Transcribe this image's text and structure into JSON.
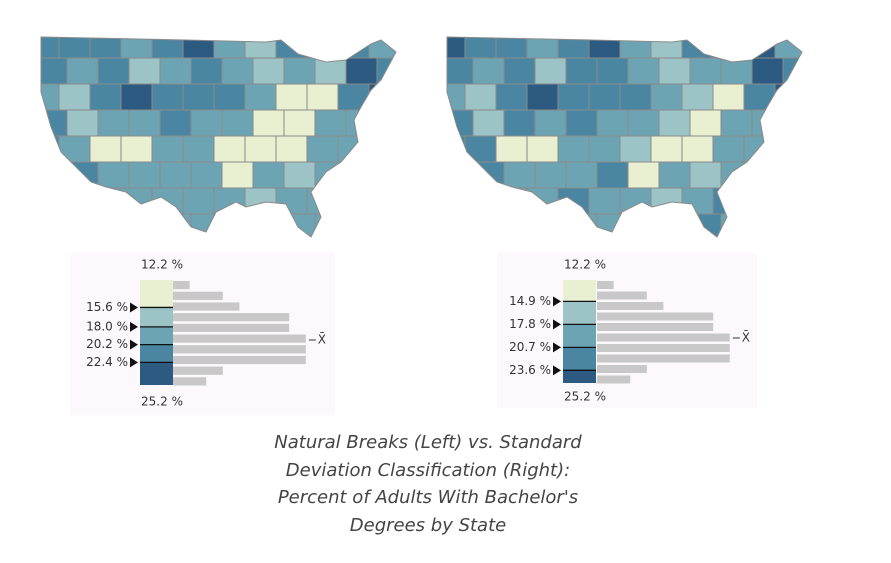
{
  "legends": [
    {
      "range": {
        "min": {
          "value": 12.2,
          "label": "12.2 %"
        },
        "max": {
          "value": 25.2,
          "label": "25.2 %"
        }
      },
      "breaks": [
        {
          "value": 15.6,
          "label": "15.6 %"
        },
        {
          "value": 18.0,
          "label": "18.0 %"
        },
        {
          "value": 20.2,
          "label": "20.2 %"
        },
        {
          "value": 22.4,
          "label": "22.4 %"
        }
      ],
      "colors": [
        "#e9f0d2",
        "#9cc4c6",
        "#6ca4b4",
        "#4a86a1",
        "#2c5a80"
      ],
      "histogram": [
        1,
        3,
        4,
        7,
        7,
        8,
        8,
        8,
        3,
        2
      ]
    },
    {
      "range": {
        "min": {
          "value": 12.2,
          "label": "12.2 %"
        },
        "max": {
          "value": 25.2,
          "label": "25.2 %"
        }
      },
      "breaks": [
        {
          "value": 14.9,
          "label": "14.9 %"
        },
        {
          "value": 17.8,
          "label": "17.8 %"
        },
        {
          "value": 20.7,
          "label": "20.7 %"
        },
        {
          "value": 23.6,
          "label": "23.6 %"
        }
      ],
      "colors": [
        "#e9f0d2",
        "#9cc4c6",
        "#6ca4b4",
        "#4a86a1",
        "#2c5a80"
      ],
      "histogram": [
        1,
        3,
        4,
        7,
        7,
        8,
        8,
        8,
        3,
        2
      ]
    }
  ],
  "mean_label": "X̄",
  "caption": [
    "Natural Breaks (Left) vs. Standard",
    "Deviation Classification (Right):",
    "Percent of Adults With Bachelor's",
    "Degrees by State"
  ]
}
